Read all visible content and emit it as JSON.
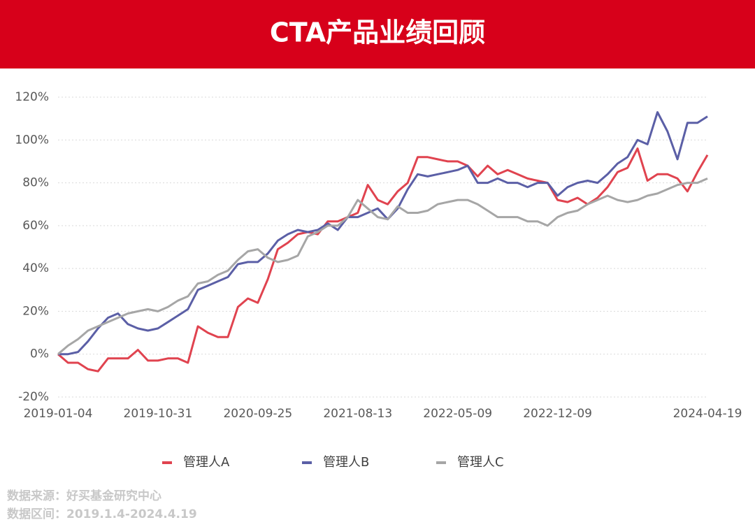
{
  "chart_data": {
    "type": "line",
    "title": "CTA产品业绩回顾",
    "categories": [
      "2019-01-04",
      null,
      null,
      null,
      null,
      null,
      null,
      null,
      null,
      null,
      "2019-10-31",
      null,
      null,
      null,
      null,
      null,
      null,
      null,
      null,
      null,
      "2020-09-25",
      null,
      null,
      null,
      null,
      null,
      null,
      null,
      null,
      null,
      "2021-08-13",
      null,
      null,
      null,
      null,
      null,
      null,
      null,
      null,
      null,
      "2022-05-09",
      null,
      null,
      null,
      null,
      null,
      null,
      null,
      null,
      null,
      "2022-12-09",
      null,
      null,
      null,
      null,
      null,
      null,
      null,
      null,
      null,
      null,
      null,
      null,
      null,
      null,
      "2024-04-19"
    ],
    "series": [
      {
        "name": "管理人A",
        "color": "#e0434f",
        "values": [
          0,
          -4,
          -4,
          -7,
          -8,
          -2,
          -2,
          -2,
          2,
          -3,
          -3,
          -2,
          -2,
          -4,
          13,
          10,
          8,
          8,
          22,
          26,
          24,
          35,
          49,
          52,
          56,
          57,
          56,
          62,
          62,
          64,
          66,
          79,
          72,
          70,
          76,
          80,
          92,
          92,
          91,
          90,
          90,
          88,
          83,
          88,
          84,
          86,
          84,
          82,
          81,
          80,
          72,
          71,
          73,
          70,
          73,
          78,
          85,
          87,
          96,
          81,
          84,
          84,
          82,
          76,
          85,
          93
        ]
      },
      {
        "name": "管理人B",
        "color": "#5b5fa6",
        "values": [
          0,
          0,
          1,
          6,
          12,
          17,
          19,
          14,
          12,
          11,
          12,
          15,
          18,
          21,
          30,
          32,
          34,
          36,
          42,
          43,
          43,
          47,
          53,
          56,
          58,
          57,
          58,
          61,
          58,
          64,
          64,
          66,
          68,
          63,
          68,
          77,
          84,
          83,
          84,
          85,
          86,
          88,
          80,
          80,
          82,
          80,
          80,
          78,
          80,
          80,
          74,
          78,
          80,
          81,
          80,
          84,
          89,
          92,
          100,
          98,
          113,
          104,
          91,
          108,
          108,
          111
        ]
      },
      {
        "name": "管理人C",
        "color": "#a6a6a6",
        "values": [
          0,
          4,
          7,
          11,
          13,
          15,
          17,
          19,
          20,
          21,
          20,
          22,
          25,
          27,
          33,
          34,
          37,
          39,
          44,
          48,
          49,
          45,
          43,
          44,
          46,
          55,
          57,
          60,
          60,
          64,
          72,
          68,
          64,
          63,
          69,
          66,
          66,
          67,
          70,
          71,
          72,
          72,
          70,
          67,
          64,
          64,
          64,
          62,
          62,
          60,
          64,
          66,
          67,
          70,
          72,
          74,
          72,
          71,
          72,
          74,
          75,
          77,
          79,
          80,
          80,
          82
        ]
      }
    ],
    "ylim": [
      -20,
      120
    ],
    "yticks": [
      {
        "value": -20,
        "label": "-20%"
      },
      {
        "value": 0,
        "label": "0%"
      },
      {
        "value": 20,
        "label": "20%"
      },
      {
        "value": 40,
        "label": "40%"
      },
      {
        "value": 60,
        "label": "60%"
      },
      {
        "value": 80,
        "label": "80%"
      },
      {
        "value": 100,
        "label": "100%"
      },
      {
        "value": 120,
        "label": "120%"
      }
    ],
    "grid": true
  },
  "footer": {
    "source": "数据来源：好买基金研究中心",
    "range": "数据区间：2019.1.4-2024.4.19"
  }
}
